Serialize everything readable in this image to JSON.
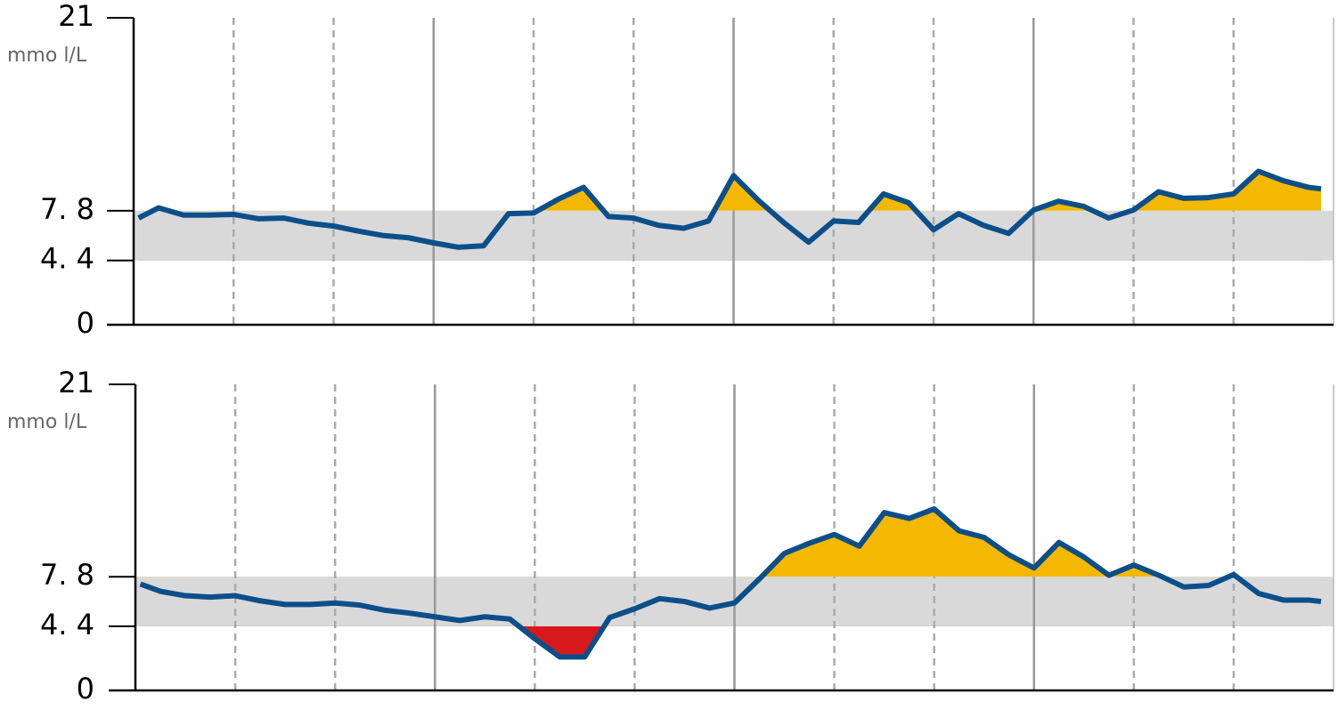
{
  "chart_data": [
    {
      "type": "line",
      "y_label": "mmo l/L",
      "ylim": [
        0,
        21
      ],
      "yticks": [
        0,
        {
          "value": 4.4,
          "label": "4. 4"
        },
        {
          "value": 7.8,
          "label": "7. 8"
        },
        21
      ],
      "xlim": [
        0,
        24
      ],
      "xticks": [
        0,
        2,
        4,
        6,
        8,
        10,
        12,
        14,
        16,
        18,
        20,
        22,
        24
      ],
      "band": {
        "from": 4.4,
        "to": 7.8,
        "color": "#d9d9d9"
      },
      "high_color": "#f5b800",
      "low_color": "#d7191c",
      "x": [
        0.1,
        0.5,
        1,
        1.5,
        2,
        2.5,
        3,
        3.5,
        4,
        4.5,
        5,
        5.5,
        6,
        6.5,
        7,
        7.5,
        8,
        8.5,
        9,
        9.5,
        10,
        10.5,
        11,
        11.5,
        12,
        12.5,
        13,
        13.5,
        14,
        14.5,
        15,
        15.5,
        16,
        16.5,
        17,
        17.5,
        18,
        18.5,
        19,
        19.5,
        20,
        20.5,
        21,
        21.5,
        22,
        22.5,
        23,
        23.5,
        23.75
      ],
      "series": [
        {
          "color": "#0b4f8a",
          "values": [
            7.3,
            8.0,
            7.5,
            7.5,
            7.55,
            7.25,
            7.3,
            6.95,
            6.75,
            6.4,
            6.1,
            5.95,
            5.6,
            5.3,
            5.4,
            7.6,
            7.65,
            8.6,
            9.4,
            7.4,
            7.3,
            6.8,
            6.6,
            7.1,
            10.2,
            8.5,
            7.0,
            5.65,
            7.1,
            7.0,
            8.95,
            8.35,
            6.5,
            7.6,
            6.8,
            6.25,
            7.85,
            8.45,
            8.1,
            7.3,
            7.85,
            9.1,
            8.65,
            8.7,
            8.95,
            10.5,
            9.85,
            9.4,
            9.3
          ]
        }
      ]
    },
    {
      "type": "line",
      "y_label": "mmo l/L",
      "ylim": [
        0,
        21
      ],
      "yticks": [
        0,
        {
          "value": 4.4,
          "label": "4. 4"
        },
        {
          "value": 7.8,
          "label": "7. 8"
        },
        21
      ],
      "xlim": [
        0,
        24
      ],
      "xticks": [
        0,
        2,
        4,
        6,
        8,
        10,
        12,
        14,
        16,
        18,
        20,
        22,
        24
      ],
      "band": {
        "from": 4.4,
        "to": 7.8,
        "color": "#d9d9d9"
      },
      "high_color": "#f5b800",
      "low_color": "#d7191c",
      "x": [
        0.1,
        0.5,
        1,
        1.5,
        2,
        2.5,
        3,
        3.5,
        4,
        4.5,
        5,
        5.5,
        6,
        6.5,
        7,
        7.5,
        8,
        8.5,
        9,
        9.5,
        10,
        10.5,
        11,
        11.5,
        12,
        12.5,
        13,
        13.5,
        14,
        14.5,
        15,
        15.5,
        16,
        16.5,
        17,
        17.5,
        18,
        18.5,
        19,
        19.5,
        20,
        20.5,
        21,
        21.5,
        22,
        22.5,
        23,
        23.5,
        23.75
      ],
      "series": [
        {
          "color": "#0b4f8a",
          "values": [
            7.3,
            6.8,
            6.5,
            6.4,
            6.5,
            6.15,
            5.9,
            5.9,
            6.0,
            5.85,
            5.5,
            5.3,
            5.05,
            4.8,
            5.05,
            4.9,
            3.55,
            2.3,
            2.3,
            5.0,
            5.6,
            6.3,
            6.1,
            5.65,
            6.0,
            7.65,
            9.4,
            10.1,
            10.7,
            9.9,
            12.2,
            11.8,
            12.45,
            10.95,
            10.5,
            9.3,
            8.4,
            10.15,
            9.15,
            7.9,
            8.6,
            7.9,
            7.1,
            7.2,
            7.95,
            6.65,
            6.2,
            6.2,
            6.1
          ]
        }
      ]
    }
  ]
}
